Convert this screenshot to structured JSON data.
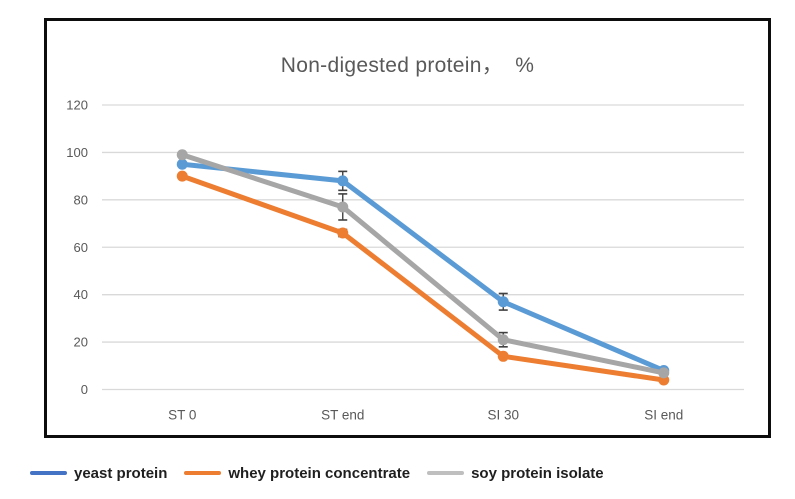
{
  "chart_data": {
    "type": "line",
    "title": "Non-digested protein，  %",
    "categories": [
      "ST 0",
      "ST end",
      "SI 30",
      "SI end"
    ],
    "series": [
      {
        "name": "yeast protein",
        "color": "#5B9BD5",
        "legend_color": "#4472C4",
        "values": [
          95,
          88,
          37,
          8
        ],
        "error_bars": [
          0,
          4,
          3.5,
          0
        ]
      },
      {
        "name": "whey protein concentrate",
        "color": "#ED7D31",
        "legend_color": "#ED7D31",
        "values": [
          90,
          66,
          14,
          4
        ],
        "error_bars": [
          0,
          1.5,
          0,
          0
        ]
      },
      {
        "name": "soy protein isolate",
        "color": "#A6A6A6",
        "legend_color": "#BFBFBF",
        "values": [
          99,
          77,
          21,
          7
        ],
        "error_bars": [
          0,
          5.5,
          3,
          0
        ]
      }
    ],
    "y_ticks": [
      0,
      20,
      40,
      60,
      80,
      100,
      120
    ],
    "ylim": [
      0,
      120
    ],
    "grid": true,
    "legend_position": "bottom-left-outside",
    "colors": {
      "gridline": "#D9D9D9",
      "tick_label": "#595959",
      "title": "#595959",
      "error_bar": "#404040",
      "box_border": "#0d0d0d",
      "legend_text": "#1f1f1f"
    }
  }
}
